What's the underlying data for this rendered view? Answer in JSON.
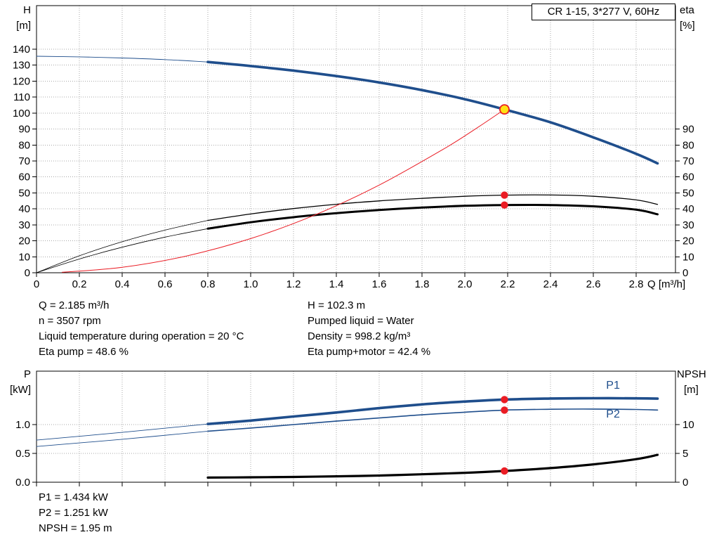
{
  "colors": {
    "curve_blue": "#1f4e8c",
    "curve_black": "#000000",
    "curve_red": "#ea1c24",
    "duty_yellow": "#ffe115",
    "grid": "#a8a8a8",
    "frame": "#000000"
  },
  "readouts_top_left": [
    "Q = 2.185 m³/h",
    "n = 3507 rpm",
    "Liquid temperature during operation = 20 °C",
    "Eta pump = 48.6 %"
  ],
  "readouts_top_right": [
    "H = 102.3 m",
    "Pumped liquid = Water",
    "Density = 998.2 kg/m³",
    "Eta pump+motor = 42.4 %"
  ],
  "readouts_bottom": [
    "P1 = 1.434 kW",
    "P2 = 1.251 kW",
    "NPSH = 1.95 m"
  ],
  "chart_data": [
    {
      "id": "qh-eta-chart",
      "type": "line",
      "title": "CR 1-15, 3*277 V, 60Hz",
      "grid": true,
      "x_axis": {
        "label": "Q [m³/h]",
        "min": 0,
        "max": 2.9836,
        "ticks": [
          0,
          0.2,
          0.4,
          0.6,
          0.8,
          1.0,
          1.2,
          1.4,
          1.6,
          1.8,
          2.0,
          2.2,
          2.4,
          2.6,
          2.8
        ],
        "tick_labels": [
          "0",
          "0.2",
          "0.4",
          "0.6",
          "0.8",
          "1.0",
          "1.2",
          "1.4",
          "1.6",
          "1.8",
          "2.0",
          "2.2",
          "2.4",
          "2.6",
          "2.8"
        ],
        "show_tick_labels": true
      },
      "y_left": {
        "label": "H",
        "unit": "[m]",
        "min": 0,
        "max": 167.3,
        "ticks": [
          0,
          10,
          20,
          30,
          40,
          50,
          60,
          70,
          80,
          90,
          100,
          110,
          120,
          130,
          140
        ]
      },
      "y_right": {
        "label": "eta",
        "unit": "[%]",
        "min": 0,
        "max": 167.3,
        "ticks": [
          0,
          10,
          20,
          30,
          40,
          50,
          60,
          70,
          80,
          90
        ]
      },
      "series": [
        {
          "name": "h-q-curve-ext",
          "color": "blue",
          "width": 0.9,
          "axis": "left",
          "points": [
            [
              0,
              135.6
            ],
            [
              0.2,
              135.2
            ],
            [
              0.4,
              134.5
            ],
            [
              0.6,
              133.5
            ],
            [
              0.8,
              132.0
            ]
          ]
        },
        {
          "name": "h-q-curve",
          "color": "blue",
          "width": 3.6,
          "axis": "left",
          "points": [
            [
              0.8,
              132.0
            ],
            [
              1.0,
              129.5
            ],
            [
              1.2,
              126.6
            ],
            [
              1.4,
              123.2
            ],
            [
              1.6,
              119.2
            ],
            [
              1.8,
              114.4
            ],
            [
              2.0,
              108.7
            ],
            [
              2.185,
              102.3
            ],
            [
              2.4,
              94.2
            ],
            [
              2.6,
              84.8
            ],
            [
              2.8,
              74.5
            ],
            [
              2.9,
              68.5
            ]
          ]
        },
        {
          "name": "eta-pump-curve-ext",
          "color": "black",
          "width": 0.8,
          "axis": "right",
          "points": [
            [
              0,
              0
            ],
            [
              0.2,
              10.6
            ],
            [
              0.4,
              19.4
            ],
            [
              0.6,
              26.7
            ],
            [
              0.8,
              32.8
            ]
          ]
        },
        {
          "name": "eta-pump-curve",
          "color": "black",
          "width": 1.3,
          "axis": "right",
          "points": [
            [
              0.8,
              32.8
            ],
            [
              1.0,
              36.8
            ],
            [
              1.2,
              40.2
            ],
            [
              1.4,
              42.9
            ],
            [
              1.6,
              45.0
            ],
            [
              1.8,
              46.6
            ],
            [
              2.0,
              47.9
            ],
            [
              2.185,
              48.6
            ],
            [
              2.4,
              48.7
            ],
            [
              2.6,
              47.9
            ],
            [
              2.8,
              45.6
            ],
            [
              2.9,
              42.8
            ]
          ]
        },
        {
          "name": "eta-pump-motor-curve-ext",
          "color": "black",
          "width": 0.8,
          "axis": "right",
          "points": [
            [
              0,
              0
            ],
            [
              0.2,
              8.6
            ],
            [
              0.4,
              16.0
            ],
            [
              0.6,
              22.3
            ],
            [
              0.8,
              27.6
            ]
          ]
        },
        {
          "name": "eta-pump-motor-curve",
          "color": "black",
          "width": 3.0,
          "axis": "right",
          "points": [
            [
              0.8,
              27.6
            ],
            [
              1.0,
              31.6
            ],
            [
              1.2,
              34.8
            ],
            [
              1.4,
              37.3
            ],
            [
              1.6,
              39.3
            ],
            [
              1.8,
              40.8
            ],
            [
              2.0,
              41.9
            ],
            [
              2.185,
              42.4
            ],
            [
              2.4,
              42.4
            ],
            [
              2.6,
              41.6
            ],
            [
              2.8,
              39.5
            ],
            [
              2.9,
              36.6
            ]
          ]
        },
        {
          "name": "system-resistance-curve",
          "color": "red",
          "width": 1.0,
          "axis": "left",
          "points": [
            [
              0.12,
              0.3
            ],
            [
              0.4,
              3.4
            ],
            [
              0.7,
              10.5
            ],
            [
              1.0,
              21.4
            ],
            [
              1.3,
              36.2
            ],
            [
              1.6,
              54.9
            ],
            [
              1.9,
              77.4
            ],
            [
              2.05,
              90.1
            ],
            [
              2.185,
              102.3
            ]
          ]
        }
      ],
      "markers": [
        {
          "name": "duty-point",
          "style": "duty",
          "x": 2.185,
          "y": 102.3,
          "axis": "left"
        },
        {
          "name": "eta-pump-point",
          "style": "dot",
          "x": 2.185,
          "y": 48.6,
          "axis": "right"
        },
        {
          "name": "eta-pump-motor-point",
          "style": "dot",
          "x": 2.185,
          "y": 42.4,
          "axis": "right"
        }
      ]
    },
    {
      "id": "power-npsh-chart",
      "type": "line",
      "grid": true,
      "x_axis": {
        "label": "",
        "min": 0,
        "max": 2.9836,
        "ticks": [
          0,
          0.2,
          0.4,
          0.6,
          0.8,
          1.0,
          1.2,
          1.4,
          1.6,
          1.8,
          2.0,
          2.2,
          2.4,
          2.6,
          2.8
        ],
        "tick_labels": [],
        "show_tick_labels": false
      },
      "y_left": {
        "label": "P",
        "unit": "[kW]",
        "min": 0,
        "max": 1.927,
        "ticks": [
          0,
          0.5,
          1.0
        ],
        "tick_labels": [
          "0.0",
          "0.5",
          "1.0"
        ]
      },
      "y_right": {
        "label": "NPSH",
        "unit": "[m]",
        "min": 0,
        "max": 19.27,
        "ticks": [
          0,
          5,
          10
        ]
      },
      "series": [
        {
          "name": "p1-curve-ext",
          "color": "blue",
          "width": 0.9,
          "axis": "left",
          "points": [
            [
              0,
              0.73
            ],
            [
              0.4,
              0.865
            ],
            [
              0.8,
              1.01
            ]
          ]
        },
        {
          "name": "p1-curve",
          "color": "blue",
          "width": 3.6,
          "axis": "left",
          "label": "P1",
          "label_at": [
            2.66,
            1.62
          ],
          "points": [
            [
              0.8,
              1.01
            ],
            [
              1.0,
              1.07
            ],
            [
              1.2,
              1.14
            ],
            [
              1.4,
              1.21
            ],
            [
              1.6,
              1.285
            ],
            [
              1.8,
              1.35
            ],
            [
              2.0,
              1.4
            ],
            [
              2.185,
              1.434
            ],
            [
              2.4,
              1.452
            ],
            [
              2.6,
              1.458
            ],
            [
              2.8,
              1.455
            ],
            [
              2.9,
              1.45
            ]
          ]
        },
        {
          "name": "p2-curve-ext",
          "color": "blue",
          "width": 0.9,
          "axis": "left",
          "points": [
            [
              0,
              0.62
            ],
            [
              0.4,
              0.745
            ],
            [
              0.8,
              0.885
            ]
          ]
        },
        {
          "name": "p2-curve",
          "color": "blue",
          "width": 1.6,
          "axis": "left",
          "label": "P2",
          "label_at": [
            2.66,
            1.12
          ],
          "points": [
            [
              0.8,
              0.885
            ],
            [
              1.0,
              0.94
            ],
            [
              1.2,
              1.0
            ],
            [
              1.4,
              1.06
            ],
            [
              1.6,
              1.115
            ],
            [
              1.8,
              1.17
            ],
            [
              2.0,
              1.215
            ],
            [
              2.185,
              1.251
            ],
            [
              2.4,
              1.266
            ],
            [
              2.6,
              1.27
            ],
            [
              2.8,
              1.262
            ],
            [
              2.9,
              1.252
            ]
          ]
        },
        {
          "name": "npsh-curve",
          "color": "black",
          "width": 3.2,
          "axis": "right",
          "points": [
            [
              0.8,
              0.8
            ],
            [
              1.0,
              0.85
            ],
            [
              1.2,
              0.92
            ],
            [
              1.4,
              1.02
            ],
            [
              1.6,
              1.16
            ],
            [
              1.8,
              1.38
            ],
            [
              2.0,
              1.63
            ],
            [
              2.185,
              1.95
            ],
            [
              2.4,
              2.45
            ],
            [
              2.6,
              3.1
            ],
            [
              2.8,
              4.0
            ],
            [
              2.9,
              4.75
            ]
          ]
        }
      ],
      "markers": [
        {
          "name": "p1-point",
          "style": "dot",
          "x": 2.185,
          "y": 1.434,
          "axis": "left"
        },
        {
          "name": "p2-point",
          "style": "dot",
          "x": 2.185,
          "y": 1.251,
          "axis": "left"
        },
        {
          "name": "npsh-point",
          "style": "dot",
          "x": 2.185,
          "y": 1.95,
          "axis": "right"
        }
      ]
    }
  ]
}
